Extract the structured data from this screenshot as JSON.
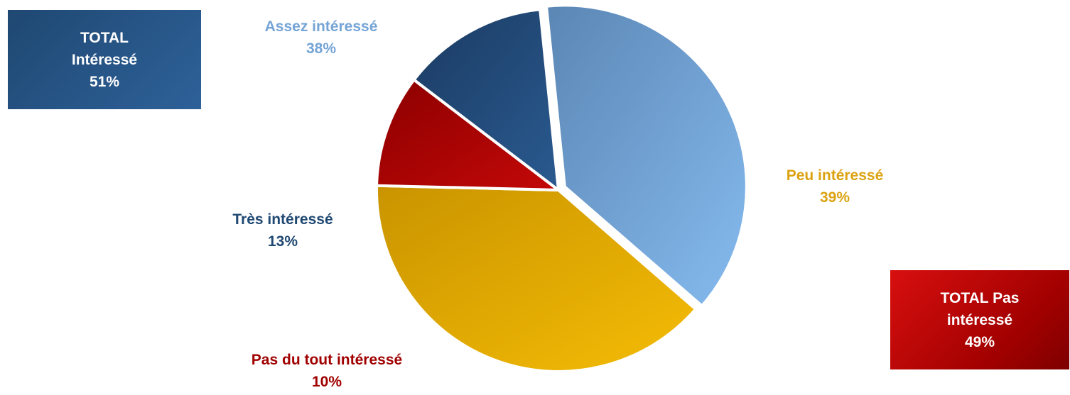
{
  "totals": {
    "interested": {
      "line1": "TOTAL",
      "line2": "Intéressé",
      "value": "51%"
    },
    "not_interested": {
      "line1": "TOTAL Pas",
      "line2": "intéressé",
      "value": "49%"
    }
  },
  "labels": {
    "assez": {
      "name": "Assez intéressé",
      "pct": "38%"
    },
    "peu": {
      "name": "Peu intéressé",
      "pct": "39%"
    },
    "tres": {
      "name": "Très intéressé",
      "pct": "13%"
    },
    "pas": {
      "name": "Pas du tout intéressé",
      "pct": "10%"
    }
  },
  "colors": {
    "interested_box": "#275585",
    "not_interested_box": "#b30000"
  },
  "chart_data": {
    "type": "pie",
    "title": "",
    "categories": [
      "Assez intéressé",
      "Peu intéressé",
      "Pas du tout intéressé",
      "Très intéressé"
    ],
    "values": [
      38,
      39,
      10,
      13
    ],
    "exploded": [
      "Assez intéressé"
    ],
    "series": [
      {
        "values": [
          38,
          39,
          10,
          13
        ],
        "colors": [
          "#6f9fd3",
          "#e6ad0a",
          "#a00000",
          "#1f4872"
        ]
      }
    ],
    "legend": "none"
  }
}
